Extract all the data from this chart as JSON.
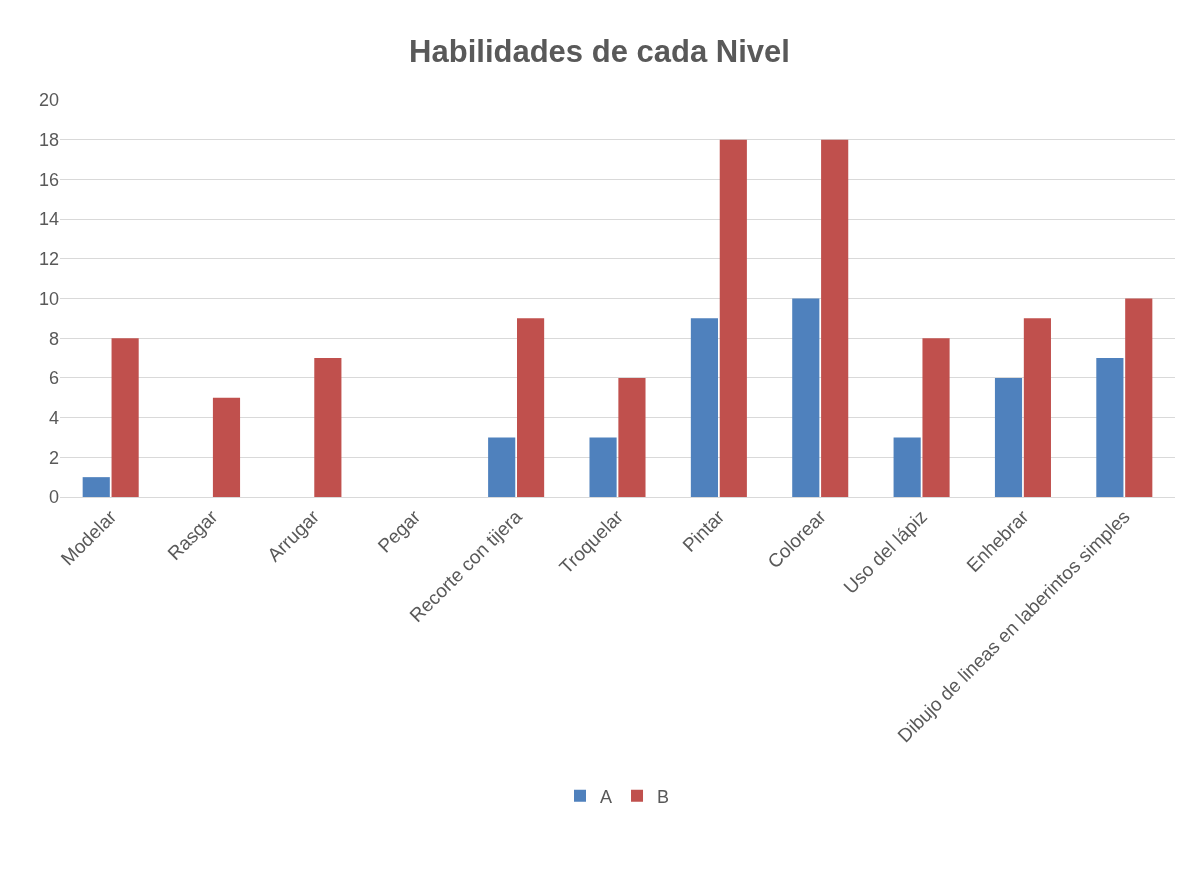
{
  "chart_data": {
    "type": "bar",
    "title": "Habilidades de cada Nivel",
    "categories": [
      "Modelar",
      "Rasgar",
      "Arrugar",
      "Pegar",
      "Recorte con tijera",
      "Troquelar",
      "Pintar",
      "Colorear",
      "Uso del lápiz",
      "Enhebrar",
      "Dibujo de lineas en laberintos simples"
    ],
    "series": [
      {
        "name": "A",
        "color": "#4f81bd",
        "values": [
          1,
          null,
          null,
          null,
          3,
          3,
          9,
          10,
          3,
          6,
          7
        ]
      },
      {
        "name": "B",
        "color": "#c0504d",
        "values": [
          8,
          5,
          7,
          null,
          9,
          6,
          18,
          18,
          8,
          9,
          10
        ]
      }
    ],
    "ylim": [
      0,
      20
    ],
    "yticks": [
      0,
      2,
      4,
      6,
      8,
      10,
      12,
      14,
      16,
      18,
      20
    ],
    "grid": "y",
    "legend": "bottom"
  }
}
